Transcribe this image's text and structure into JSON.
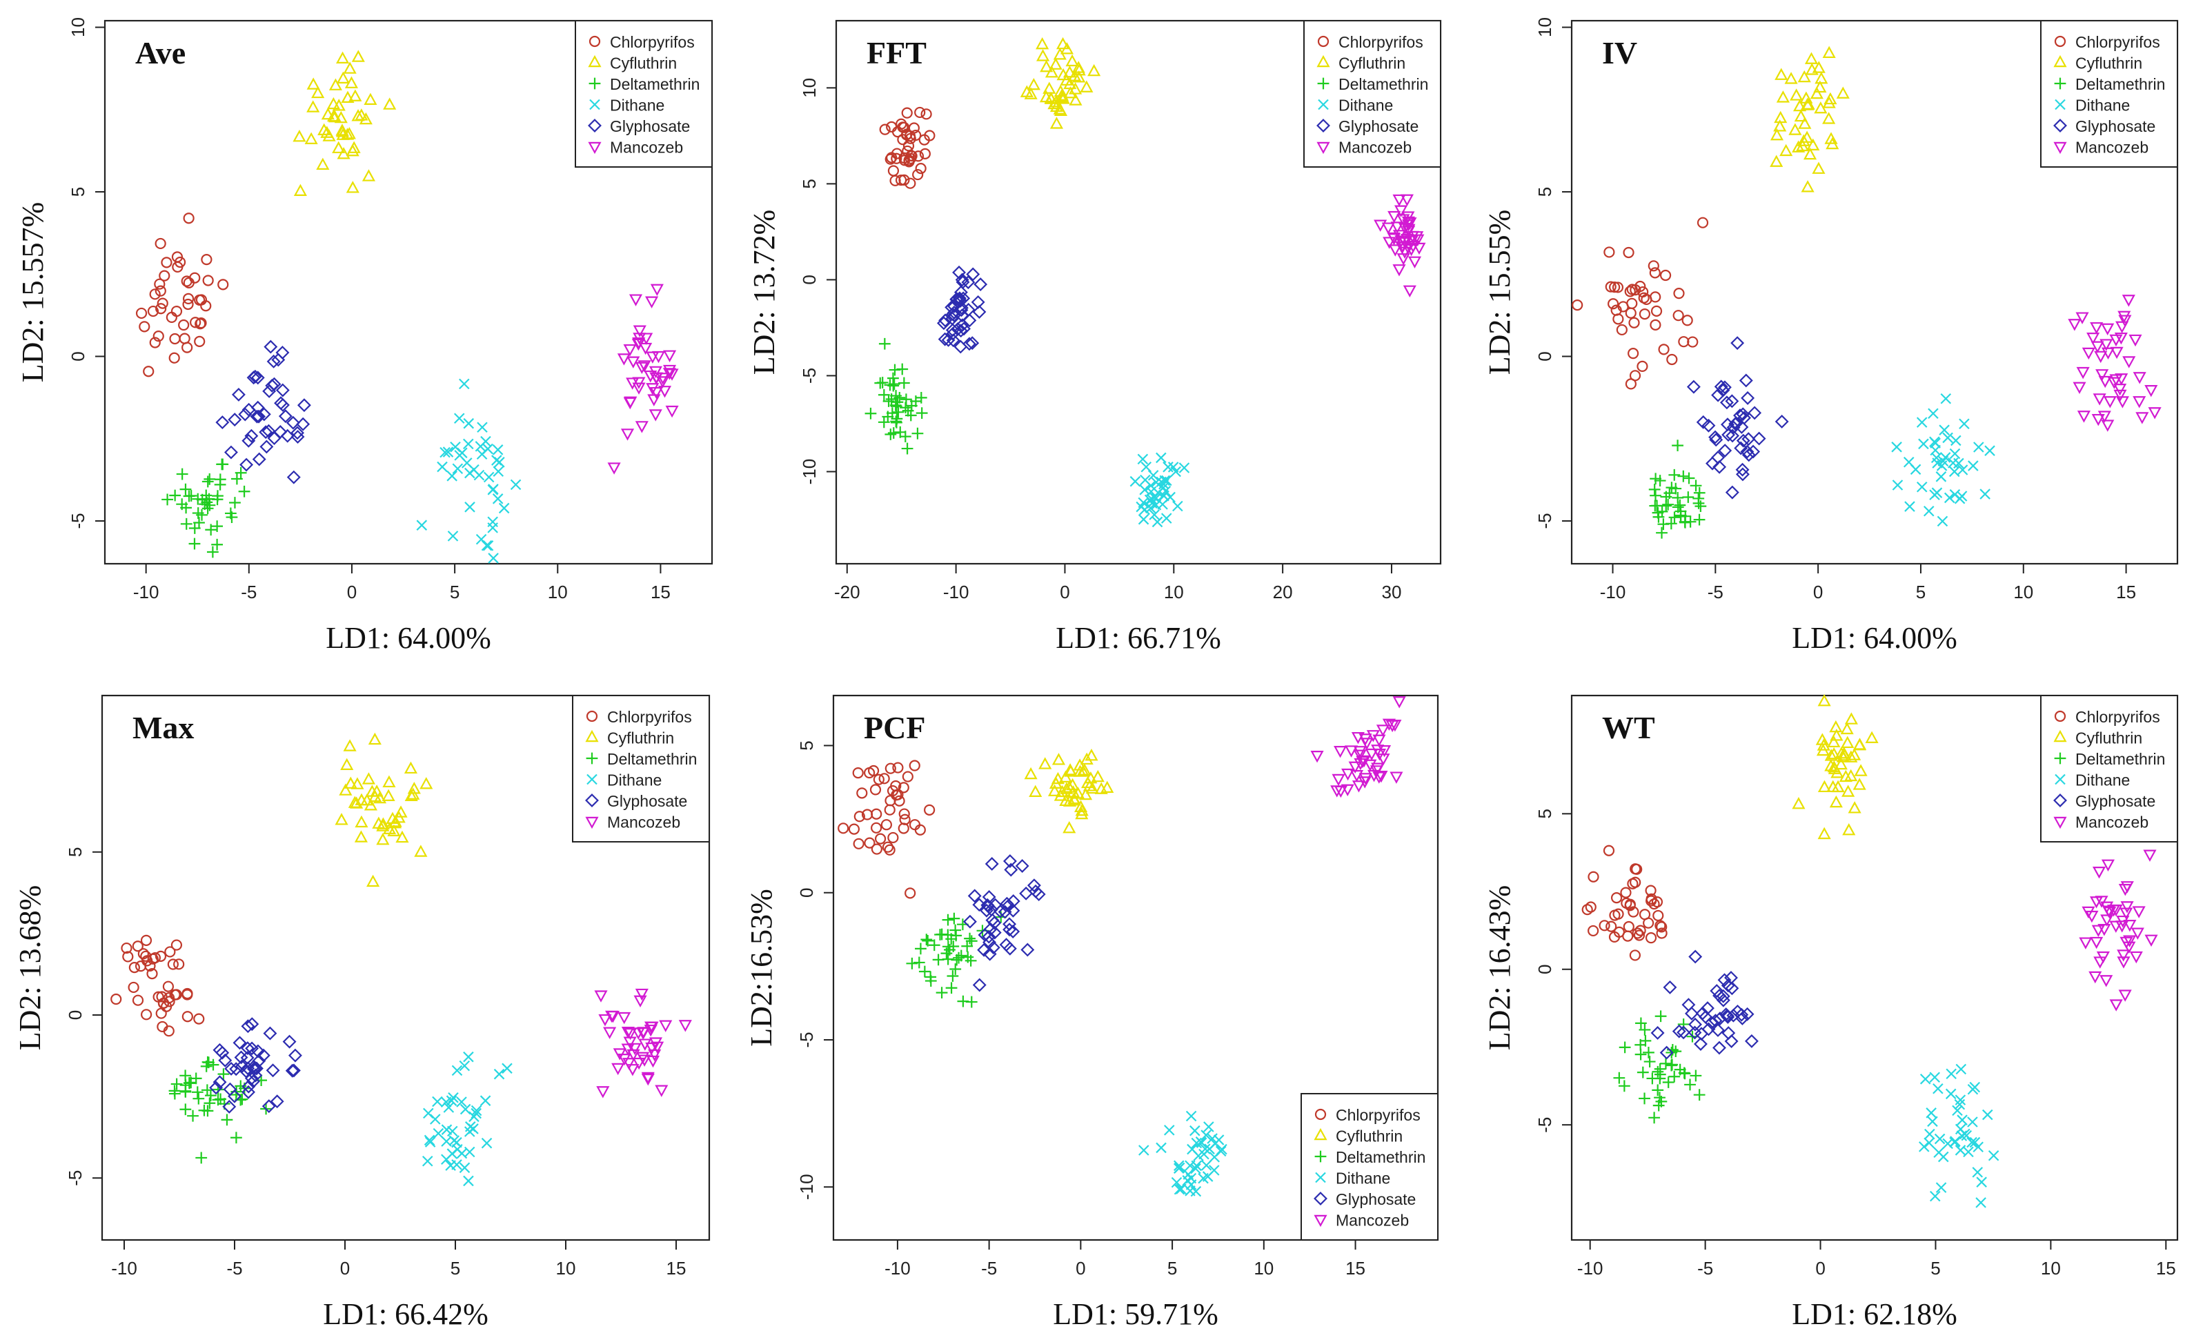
{
  "figure": {
    "colors": {
      "Chlorpyrifos": "#c0392b",
      "Cyfluthrin": "#e8e000",
      "Deltamethrin": "#1fcc1f",
      "Dithane": "#28d7e0",
      "Glyphosate": "#2c2cb0",
      "Mancozeb": "#d21ad2"
    },
    "markers": {
      "Chlorpyrifos": "circle",
      "Cyfluthrin": "triangle-up",
      "Deltamethrin": "plus",
      "Dithane": "cross",
      "Glyphosate": "diamond",
      "Mancozeb": "triangle-down"
    }
  },
  "chart_data": [
    {
      "type": "scatter",
      "title": "Ave",
      "xlabel": "LD1: 64.00%",
      "ylabel": "LD2: 15.557%",
      "xlim": [
        -12,
        17.5
      ],
      "ylim": [
        -6.3,
        10.2
      ],
      "xticks": [
        -10,
        -5,
        0,
        5,
        10,
        15
      ],
      "yticks": [
        -5,
        0,
        5,
        10
      ],
      "legend_position": "top-right",
      "series": [
        {
          "name": "Chlorpyrifos",
          "center": [
            -8.5,
            1.5
          ],
          "spread": [
            1.2,
            1.1
          ],
          "n": 40
        },
        {
          "name": "Cyfluthrin",
          "center": [
            -0.5,
            7.5
          ],
          "spread": [
            1.0,
            0.9
          ],
          "n": 40
        },
        {
          "name": "Deltamethrin",
          "center": [
            -6.8,
            -4.5
          ],
          "spread": [
            0.9,
            0.6
          ],
          "n": 40
        },
        {
          "name": "Dithane",
          "center": [
            6.0,
            -3.3
          ],
          "spread": [
            1.0,
            0.9
          ],
          "n": 40
        },
        {
          "name": "Glyphosate",
          "center": [
            -4.3,
            -2.0
          ],
          "spread": [
            0.9,
            0.9
          ],
          "n": 40
        },
        {
          "name": "Mancozeb",
          "center": [
            14.5,
            -0.5
          ],
          "spread": [
            0.9,
            1.0
          ],
          "n": 40
        }
      ]
    },
    {
      "type": "scatter",
      "title": "FFT",
      "xlabel": "LD1: 66.71%",
      "ylabel": "LD2: 13.72%",
      "xlim": [
        -21,
        34.5
      ],
      "ylim": [
        -14.8,
        13.5
      ],
      "xticks": [
        -20,
        -10,
        0,
        10,
        20,
        30
      ],
      "yticks": [
        -10,
        -5,
        0,
        5,
        10
      ],
      "legend_position": "top-right",
      "series": [
        {
          "name": "Chlorpyrifos",
          "center": [
            -14.5,
            7.0
          ],
          "spread": [
            0.9,
            1.0
          ],
          "n": 40
        },
        {
          "name": "Cyfluthrin",
          "center": [
            0.0,
            10.2
          ],
          "spread": [
            1.2,
            0.9
          ],
          "n": 40
        },
        {
          "name": "Deltamethrin",
          "center": [
            -15.5,
            -6.5
          ],
          "spread": [
            1.0,
            1.0
          ],
          "n": 40
        },
        {
          "name": "Dithane",
          "center": [
            8.5,
            -11.0
          ],
          "spread": [
            1.0,
            0.9
          ],
          "n": 40
        },
        {
          "name": "Glyphosate",
          "center": [
            -9.5,
            -1.7
          ],
          "spread": [
            0.9,
            1.0
          ],
          "n": 40
        },
        {
          "name": "Mancozeb",
          "center": [
            31.0,
            2.5
          ],
          "spread": [
            0.8,
            1.0
          ],
          "n": 40
        }
      ]
    },
    {
      "type": "scatter",
      "title": "IV",
      "xlabel": "LD1: 64.00%",
      "ylabel": "LD2: 15.55%",
      "xlim": [
        -12,
        17.5
      ],
      "ylim": [
        -6.3,
        10.2
      ],
      "xticks": [
        -10,
        -5,
        0,
        5,
        10,
        15
      ],
      "yticks": [
        -5,
        0,
        5,
        10
      ],
      "legend_position": "top-right",
      "series": [
        {
          "name": "Chlorpyrifos",
          "center": [
            -8.5,
            1.5
          ],
          "spread": [
            1.2,
            1.1
          ],
          "n": 40
        },
        {
          "name": "Cyfluthrin",
          "center": [
            -0.5,
            7.5
          ],
          "spread": [
            1.0,
            0.9
          ],
          "n": 40
        },
        {
          "name": "Deltamethrin",
          "center": [
            -6.8,
            -4.5
          ],
          "spread": [
            0.9,
            0.6
          ],
          "n": 40
        },
        {
          "name": "Dithane",
          "center": [
            6.0,
            -3.3
          ],
          "spread": [
            1.0,
            0.9
          ],
          "n": 40
        },
        {
          "name": "Glyphosate",
          "center": [
            -4.3,
            -2.0
          ],
          "spread": [
            0.9,
            0.9
          ],
          "n": 40
        },
        {
          "name": "Mancozeb",
          "center": [
            14.5,
            -0.5
          ],
          "spread": [
            0.9,
            1.0
          ],
          "n": 40
        }
      ]
    },
    {
      "type": "scatter",
      "title": "Max",
      "xlabel": "LD1: 66.42%",
      "ylabel": "LD2: 13.68%",
      "xlim": [
        -11,
        16.5
      ],
      "ylim": [
        -6.9,
        9.8
      ],
      "xticks": [
        -10,
        -5,
        0,
        5,
        10,
        15
      ],
      "yticks": [
        -5,
        0,
        5
      ],
      "legend_position": "top-right",
      "series": [
        {
          "name": "Chlorpyrifos",
          "center": [
            -8.5,
            1.0
          ],
          "spread": [
            0.9,
            0.8
          ],
          "n": 40
        },
        {
          "name": "Cyfluthrin",
          "center": [
            1.5,
            6.5
          ],
          "spread": [
            0.9,
            1.0
          ],
          "n": 40
        },
        {
          "name": "Deltamethrin",
          "center": [
            -6.0,
            -2.5
          ],
          "spread": [
            0.9,
            0.7
          ],
          "n": 40
        },
        {
          "name": "Dithane",
          "center": [
            5.0,
            -3.5
          ],
          "spread": [
            0.8,
            1.0
          ],
          "n": 40
        },
        {
          "name": "Glyphosate",
          "center": [
            -4.0,
            -1.6
          ],
          "spread": [
            0.9,
            0.7
          ],
          "n": 40
        },
        {
          "name": "Mancozeb",
          "center": [
            13.0,
            -0.7
          ],
          "spread": [
            0.9,
            0.8
          ],
          "n": 40
        }
      ]
    },
    {
      "type": "scatter",
      "title": "PCF",
      "xlabel": "LD1: 59.71%",
      "ylabel": "LD2:16.53%",
      "xlim": [
        -13.5,
        19.5
      ],
      "ylim": [
        -11.8,
        6.7
      ],
      "xticks": [
        -10,
        -5,
        0,
        5,
        10,
        15
      ],
      "yticks": [
        -10,
        -5,
        0,
        5
      ],
      "legend_position": "bottom-right",
      "series": [
        {
          "name": "Chlorpyrifos",
          "center": [
            -10.5,
            3.0
          ],
          "spread": [
            1.0,
            0.9
          ],
          "n": 40
        },
        {
          "name": "Cyfluthrin",
          "center": [
            -0.5,
            3.5
          ],
          "spread": [
            0.9,
            0.6
          ],
          "n": 40
        },
        {
          "name": "Deltamethrin",
          "center": [
            -7.0,
            -2.0
          ],
          "spread": [
            1.0,
            0.8
          ],
          "n": 40
        },
        {
          "name": "Dithane",
          "center": [
            6.5,
            -9.0
          ],
          "spread": [
            0.9,
            0.8
          ],
          "n": 40
        },
        {
          "name": "Glyphosate",
          "center": [
            -4.5,
            -0.8
          ],
          "spread": [
            0.9,
            0.9
          ],
          "n": 40
        },
        {
          "name": "Mancozeb",
          "center": [
            15.5,
            4.5
          ],
          "spread": [
            0.9,
            0.7
          ],
          "n": 40
        }
      ]
    },
    {
      "type": "scatter",
      "title": "WT",
      "xlabel": "LD1: 62.18%",
      "ylabel": "LD2: 16.43%",
      "xlim": [
        -10.8,
        15.5
      ],
      "ylim": [
        -8.7,
        8.8
      ],
      "xticks": [
        -10,
        -5,
        0,
        5,
        10,
        15
      ],
      "yticks": [
        -5,
        0,
        5
      ],
      "legend_position": "top-right",
      "series": [
        {
          "name": "Chlorpyrifos",
          "center": [
            -8.0,
            1.8
          ],
          "spread": [
            0.9,
            0.7
          ],
          "n": 40
        },
        {
          "name": "Cyfluthrin",
          "center": [
            0.8,
            6.5
          ],
          "spread": [
            0.7,
            0.9
          ],
          "n": 40
        },
        {
          "name": "Deltamethrin",
          "center": [
            -7.0,
            -3.0
          ],
          "spread": [
            0.9,
            0.7
          ],
          "n": 40
        },
        {
          "name": "Dithane",
          "center": [
            6.0,
            -5.2
          ],
          "spread": [
            0.9,
            1.0
          ],
          "n": 40
        },
        {
          "name": "Glyphosate",
          "center": [
            -4.5,
            -1.4
          ],
          "spread": [
            0.9,
            0.8
          ],
          "n": 40
        },
        {
          "name": "Mancozeb",
          "center": [
            12.8,
            1.3
          ],
          "spread": [
            0.8,
            0.9
          ],
          "n": 40
        }
      ]
    }
  ]
}
